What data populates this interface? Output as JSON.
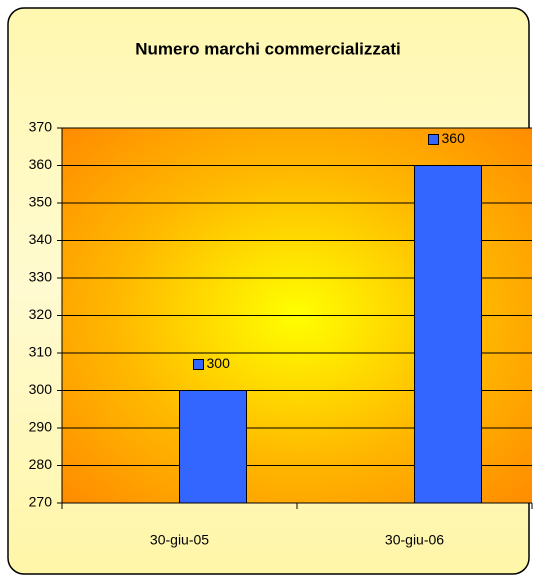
{
  "chart_data": {
    "type": "bar",
    "title": "Numero marchi commercializzati",
    "categories": [
      "30-giu-05",
      "30-giu-06"
    ],
    "values": [
      300,
      360
    ],
    "color": "#3366ff",
    "ylim": [
      270,
      370
    ],
    "yticks": [
      270,
      280,
      290,
      300,
      310,
      320,
      330,
      340,
      350,
      360,
      370
    ],
    "grid": true
  }
}
